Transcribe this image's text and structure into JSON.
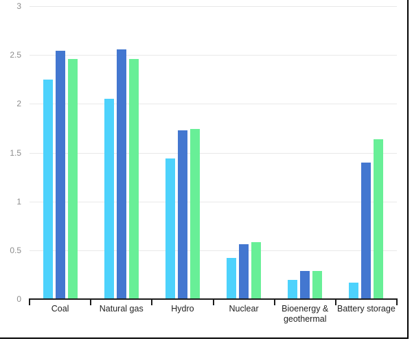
{
  "frame": {
    "background": "#ffffff",
    "border_color": "#000000"
  },
  "axis_style": {
    "grid_color": "#e8e8e8",
    "axis_color": "#1a1a1a",
    "y_tick_label_color": "#8c8c8c",
    "category_label_color": "#1f1f1f"
  },
  "chart_data": {
    "type": "bar",
    "title": "",
    "xlabel": "",
    "ylabel": "",
    "grid": true,
    "legend": "none",
    "ylim": [
      0,
      3
    ],
    "y_ticks": [
      0,
      0.5,
      1,
      1.5,
      2,
      2.5,
      3
    ],
    "categories": [
      "Coal",
      "Natural gas",
      "Hydro",
      "Nuclear",
      "Bioenergy & geothermal",
      "Battery storage"
    ],
    "series": [
      {
        "name": "light-blue",
        "color": "#4DD2FC",
        "values": [
          2.25,
          2.05,
          1.44,
          0.42,
          0.2,
          0.17
        ]
      },
      {
        "name": "blue",
        "color": "#4377D0",
        "values": [
          2.54,
          2.56,
          1.73,
          0.56,
          0.29,
          1.4
        ]
      },
      {
        "name": "green",
        "color": "#68EF97",
        "values": [
          2.46,
          2.46,
          1.74,
          0.58,
          0.29,
          1.64
        ]
      }
    ]
  }
}
